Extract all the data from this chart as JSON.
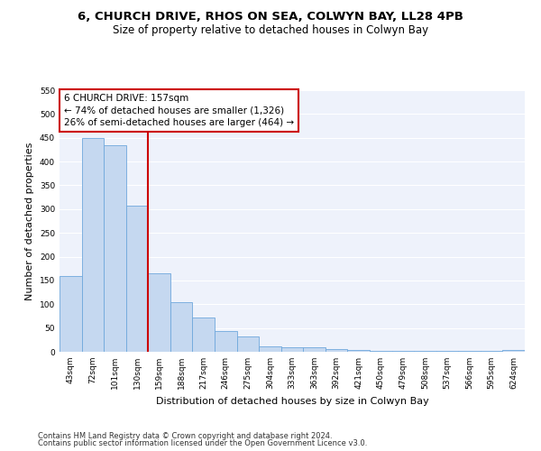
{
  "title": "6, CHURCH DRIVE, RHOS ON SEA, COLWYN BAY, LL28 4PB",
  "subtitle": "Size of property relative to detached houses in Colwyn Bay",
  "xlabel": "Distribution of detached houses by size in Colwyn Bay",
  "ylabel": "Number of detached properties",
  "categories": [
    "43sqm",
    "72sqm",
    "101sqm",
    "130sqm",
    "159sqm",
    "188sqm",
    "217sqm",
    "246sqm",
    "275sqm",
    "304sqm",
    "333sqm",
    "363sqm",
    "392sqm",
    "421sqm",
    "450sqm",
    "479sqm",
    "508sqm",
    "537sqm",
    "566sqm",
    "595sqm",
    "624sqm"
  ],
  "values": [
    160,
    449,
    435,
    307,
    165,
    105,
    73,
    44,
    33,
    11,
    10,
    10,
    5,
    3,
    2,
    1,
    1,
    1,
    1,
    1,
    4
  ],
  "bar_color": "#c5d8f0",
  "bar_edge_color": "#6fa8dc",
  "vline_color": "#cc0000",
  "annotation_title": "6 CHURCH DRIVE: 157sqm",
  "annotation_line1": "← 74% of detached houses are smaller (1,326)",
  "annotation_line2": "26% of semi-detached houses are larger (464) →",
  "annotation_box_color": "#cc0000",
  "annotation_text_color": "#000000",
  "annotation_bg": "#ffffff",
  "ylim": [
    0,
    550
  ],
  "yticks": [
    0,
    50,
    100,
    150,
    200,
    250,
    300,
    350,
    400,
    450,
    500,
    550
  ],
  "footnote1": "Contains HM Land Registry data © Crown copyright and database right 2024.",
  "footnote2": "Contains public sector information licensed under the Open Government Licence v3.0.",
  "background_color": "#eef2fb",
  "grid_color": "#ffffff",
  "fig_background": "#ffffff",
  "title_fontsize": 9.5,
  "subtitle_fontsize": 8.5,
  "axis_label_fontsize": 8,
  "tick_fontsize": 6.5,
  "footnote_fontsize": 6,
  "annotation_fontsize": 7.5
}
